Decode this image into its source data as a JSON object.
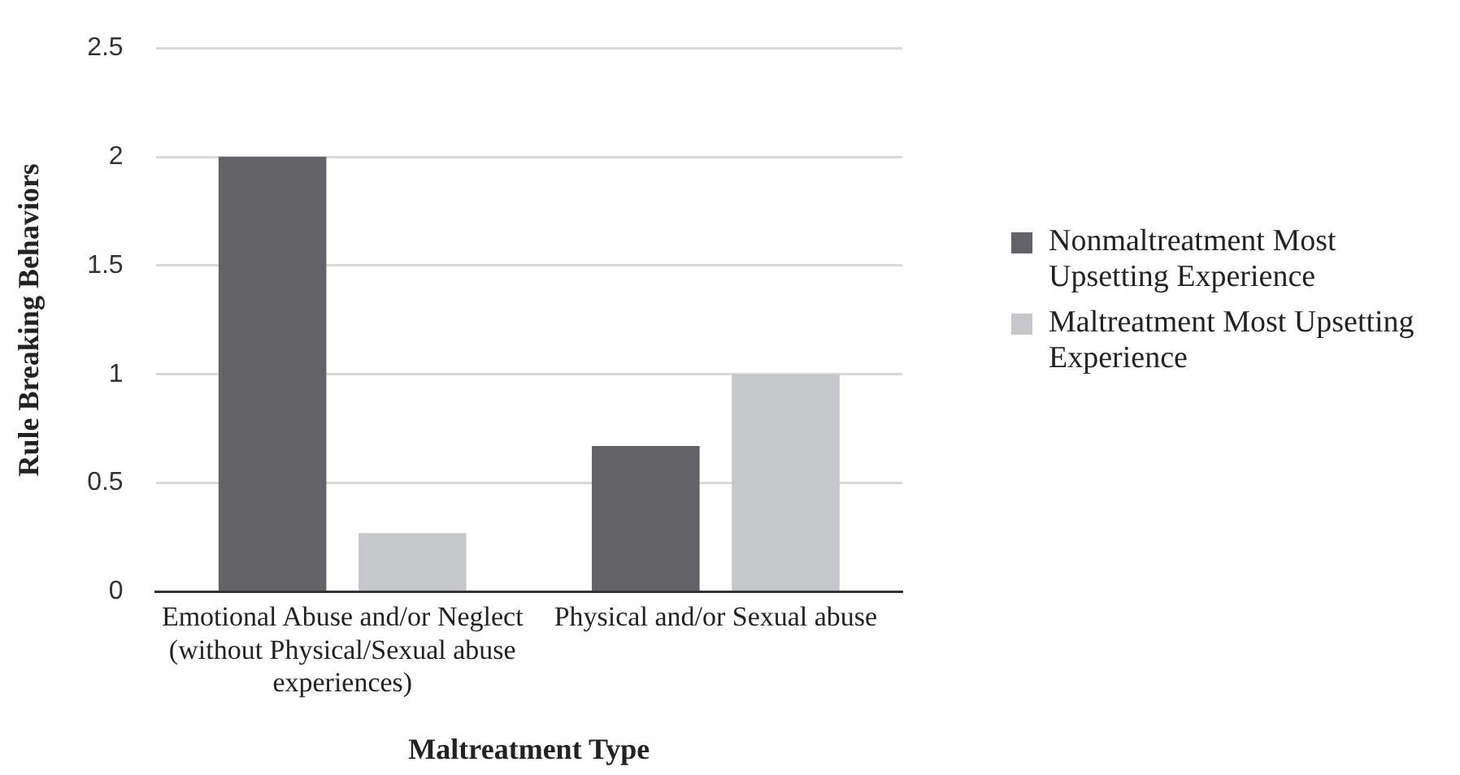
{
  "chart_data": {
    "type": "bar",
    "xlabel": "Maltreatment Type",
    "ylabel": "Rule Breaking Behaviors",
    "categories": [
      "Emotional Abuse and/or Neglect (without Physical/Sexual abuse experiences)",
      "Physical and/or Sexual abuse"
    ],
    "series": [
      {
        "name": "Nonmaltreatment Most Upsetting Experience",
        "color": "#636365",
        "values": [
          2.0,
          0.67
        ]
      },
      {
        "name": "Maltreatment Most Upsetting Experience",
        "color": "#c6c7c9",
        "values": [
          0.27,
          1.0
        ]
      }
    ],
    "ylim": [
      0,
      2.5
    ],
    "yticks": [
      0,
      0.5,
      1,
      1.5,
      2,
      2.5
    ],
    "grid": "y",
    "legend": "right"
  }
}
